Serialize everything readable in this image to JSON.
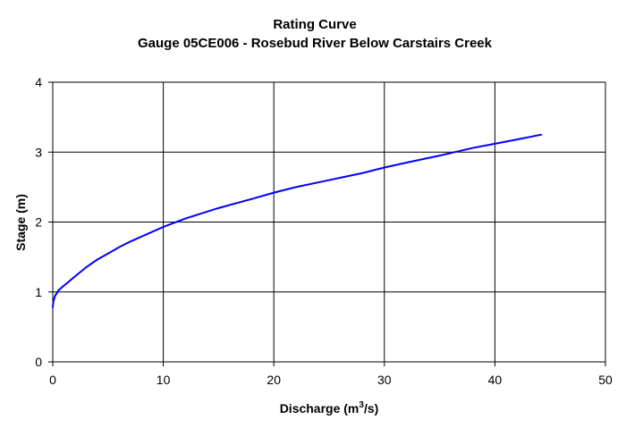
{
  "chart_data": {
    "type": "line",
    "title": "Rating Curve",
    "subtitle": "Gauge 05CE006 - Rosebud River Below Carstairs Creek",
    "xlabel": "Discharge (m",
    "xlabel_sup": "3",
    "xlabel_suffix": "/s)",
    "ylabel": "Stage (m)",
    "xlim": [
      0,
      50
    ],
    "ylim": [
      0,
      4
    ],
    "x_ticks": [
      0,
      10,
      20,
      30,
      40,
      50
    ],
    "y_ticks": [
      0,
      1,
      2,
      3,
      4
    ],
    "x_tick_labels": [
      "0",
      "10",
      "20",
      "30",
      "40",
      "50"
    ],
    "y_tick_labels": [
      "0",
      "1",
      "2",
      "3",
      "4"
    ],
    "grid": true,
    "series": [
      {
        "color": "#0000ff",
        "x": [
          0.0,
          0.05,
          0.2,
          0.5,
          1,
          2,
          3,
          4,
          5,
          6,
          7,
          8,
          10,
          12,
          15,
          18,
          20,
          22,
          25,
          28,
          30,
          32,
          35,
          38,
          40,
          42,
          44.2
        ],
        "y": [
          0.78,
          0.86,
          0.94,
          1.02,
          1.09,
          1.22,
          1.35,
          1.46,
          1.55,
          1.64,
          1.72,
          1.79,
          1.93,
          2.05,
          2.2,
          2.33,
          2.42,
          2.5,
          2.6,
          2.7,
          2.78,
          2.85,
          2.95,
          3.06,
          3.12,
          3.18,
          3.25
        ]
      }
    ]
  }
}
